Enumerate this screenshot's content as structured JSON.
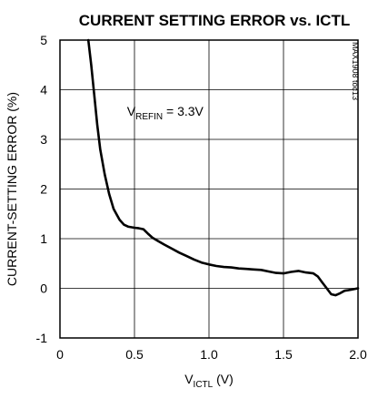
{
  "chart_data": {
    "type": "line",
    "title": "CURRENT SETTING ERROR vs. ICTL",
    "xlabel": {
      "main": "V",
      "sub": "ICTL",
      "unit": " (V)"
    },
    "ylabel": "CURRENT-SETTING ERROR (%)",
    "xlim": [
      0,
      2.0
    ],
    "ylim": [
      -1,
      5
    ],
    "xticks": [
      "0",
      "0.5",
      "1.0",
      "1.5",
      "2.0"
    ],
    "xtick_values": [
      0,
      0.5,
      1.0,
      1.5,
      2.0
    ],
    "yticks": [
      "-1",
      "0",
      "1",
      "2",
      "3",
      "4",
      "5"
    ],
    "ytick_values": [
      -1,
      0,
      1,
      2,
      3,
      4,
      5
    ],
    "grid": true,
    "annotation": {
      "main": "V",
      "sub": "REFIN",
      "rest": " = 3.3V",
      "x": 0.45,
      "y": 3.48
    },
    "side_tag": "MAX1908 toc13",
    "series": [
      {
        "x": [
          0.19,
          0.21,
          0.23,
          0.25,
          0.27,
          0.3,
          0.33,
          0.36,
          0.4,
          0.43,
          0.46,
          0.5,
          0.53,
          0.56,
          0.59,
          0.62,
          0.66,
          0.7,
          0.75,
          0.8,
          0.85,
          0.9,
          0.95,
          1.0,
          1.05,
          1.1,
          1.15,
          1.2,
          1.25,
          1.3,
          1.35,
          1.4,
          1.45,
          1.5,
          1.55,
          1.6,
          1.65,
          1.7,
          1.73,
          1.76,
          1.79,
          1.82,
          1.85,
          1.88,
          1.91,
          1.95,
          2.0
        ],
        "values": [
          5.0,
          4.5,
          3.9,
          3.3,
          2.8,
          2.3,
          1.9,
          1.6,
          1.38,
          1.28,
          1.24,
          1.22,
          1.21,
          1.19,
          1.1,
          1.02,
          0.95,
          0.88,
          0.8,
          0.72,
          0.65,
          0.58,
          0.52,
          0.48,
          0.45,
          0.43,
          0.42,
          0.4,
          0.39,
          0.38,
          0.37,
          0.34,
          0.31,
          0.3,
          0.33,
          0.35,
          0.32,
          0.3,
          0.24,
          0.12,
          0.0,
          -0.12,
          -0.14,
          -0.1,
          -0.05,
          -0.03,
          0.0
        ]
      }
    ]
  }
}
